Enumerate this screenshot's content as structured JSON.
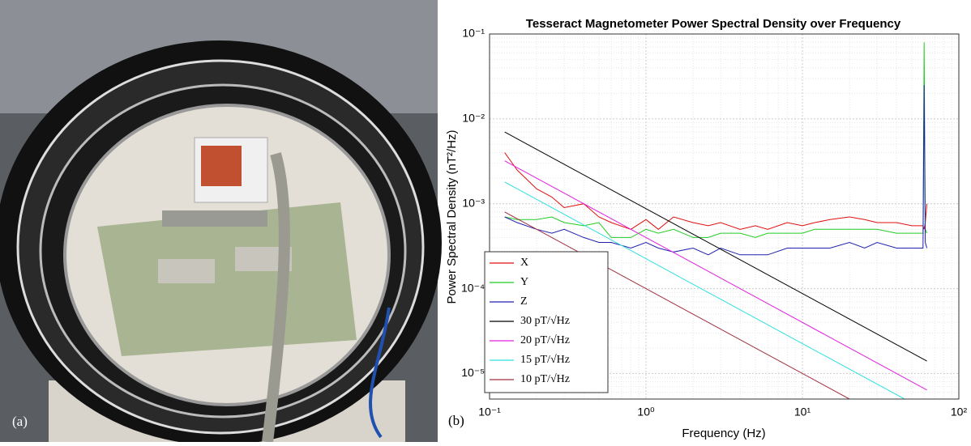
{
  "photo": {
    "label": "(a)"
  },
  "chart_data": {
    "type": "line",
    "panel_label": "(b)",
    "title": "Tesseract Magnetometer Power Spectral Density over Frequency",
    "x_label": "Frequency (Hz)",
    "y_label": "Power Spectral Density (nT²/Hz)",
    "xscale": "log",
    "yscale": "log",
    "grid": true,
    "minor_grid": true,
    "legend": "southwest",
    "xlim": [
      0.1,
      100
    ],
    "xticks": [
      {
        "value": 0.1,
        "label": "10⁻¹"
      },
      {
        "value": 1,
        "label": "10⁰"
      },
      {
        "value": 10,
        "label": "10¹"
      },
      {
        "value": 100,
        "label": "10²"
      }
    ],
    "ylim": [
      5e-06,
      0.1
    ],
    "yticks": [
      {
        "value": 1e-05,
        "label": "10⁻⁵"
      },
      {
        "value": 0.0001,
        "label": "10⁻⁴"
      },
      {
        "value": 0.001,
        "label": "10⁻³"
      },
      {
        "value": 0.01,
        "label": "10⁻²"
      },
      {
        "value": 0.1,
        "label": "10⁻¹"
      }
    ],
    "series": [
      {
        "name": "X",
        "color": "#e01010",
        "x": [
          0.125,
          0.15,
          0.2,
          0.25,
          0.3,
          0.4,
          0.5,
          0.6,
          0.8,
          1,
          1.2,
          1.5,
          2,
          2.5,
          3,
          4,
          5,
          6,
          8,
          10,
          12,
          15,
          20,
          25,
          30,
          40,
          50,
          59,
          60,
          61,
          62.5
        ],
        "values": [
          0.004,
          0.0025,
          0.0015,
          0.0012,
          0.0009,
          0.001,
          0.0007,
          0.0006,
          0.0005,
          0.00065,
          0.0005,
          0.0007,
          0.0006,
          0.00055,
          0.0006,
          0.0005,
          0.00055,
          0.0005,
          0.0006,
          0.00055,
          0.0006,
          0.00065,
          0.0007,
          0.00065,
          0.0006,
          0.0006,
          0.00055,
          0.00055,
          0.0005,
          0.0006,
          0.001
        ]
      },
      {
        "name": "Y",
        "color": "#22cc22",
        "x": [
          0.125,
          0.15,
          0.2,
          0.25,
          0.3,
          0.4,
          0.5,
          0.6,
          0.8,
          1,
          1.2,
          1.5,
          2,
          2.5,
          3,
          4,
          5,
          6,
          8,
          10,
          12,
          15,
          20,
          25,
          30,
          40,
          50,
          59,
          60,
          61,
          62.5
        ],
        "values": [
          0.0007,
          0.00065,
          0.00065,
          0.0007,
          0.0006,
          0.00055,
          0.0006,
          0.0004,
          0.0004,
          0.0005,
          0.00045,
          0.0005,
          0.0004,
          0.0004,
          0.00045,
          0.00045,
          0.0004,
          0.00045,
          0.00045,
          0.00045,
          0.0005,
          0.0005,
          0.0005,
          0.0005,
          0.0005,
          0.00045,
          0.00045,
          0.00045,
          0.08,
          0.0005,
          0.00045
        ]
      },
      {
        "name": "Z",
        "color": "#2020b0",
        "x": [
          0.125,
          0.15,
          0.2,
          0.25,
          0.3,
          0.4,
          0.5,
          0.6,
          0.8,
          1,
          1.2,
          1.5,
          2,
          2.5,
          3,
          4,
          5,
          6,
          8,
          10,
          12,
          15,
          20,
          25,
          30,
          40,
          50,
          59,
          60,
          61,
          62.5
        ],
        "values": [
          0.0007,
          0.0006,
          0.0005,
          0.00045,
          0.0005,
          0.0004,
          0.00035,
          0.00035,
          0.0003,
          0.00035,
          0.0003,
          0.00027,
          0.0003,
          0.00025,
          0.0003,
          0.00025,
          0.00025,
          0.00025,
          0.0003,
          0.0003,
          0.0003,
          0.0003,
          0.00035,
          0.0003,
          0.00035,
          0.0003,
          0.0003,
          0.0003,
          0.025,
          0.00035,
          0.0003
        ]
      },
      {
        "name": "30 pT/√Hz",
        "color": "#000000",
        "x": [
          0.125,
          62.5
        ],
        "values": [
          0.007,
          1.4e-05
        ]
      },
      {
        "name": "20 pT/√Hz",
        "color": "#e020e0",
        "x": [
          0.125,
          62.5
        ],
        "values": [
          0.0032,
          6.4e-06
        ]
      },
      {
        "name": "15 pT/√Hz",
        "color": "#30e0e0",
        "x": [
          0.125,
          45
        ],
        "values": [
          0.0018,
          5e-06
        ]
      },
      {
        "name": "10 pT/√Hz",
        "color": "#a03040",
        "x": [
          0.125,
          20
        ],
        "values": [
          0.0008,
          5e-06
        ]
      }
    ]
  }
}
